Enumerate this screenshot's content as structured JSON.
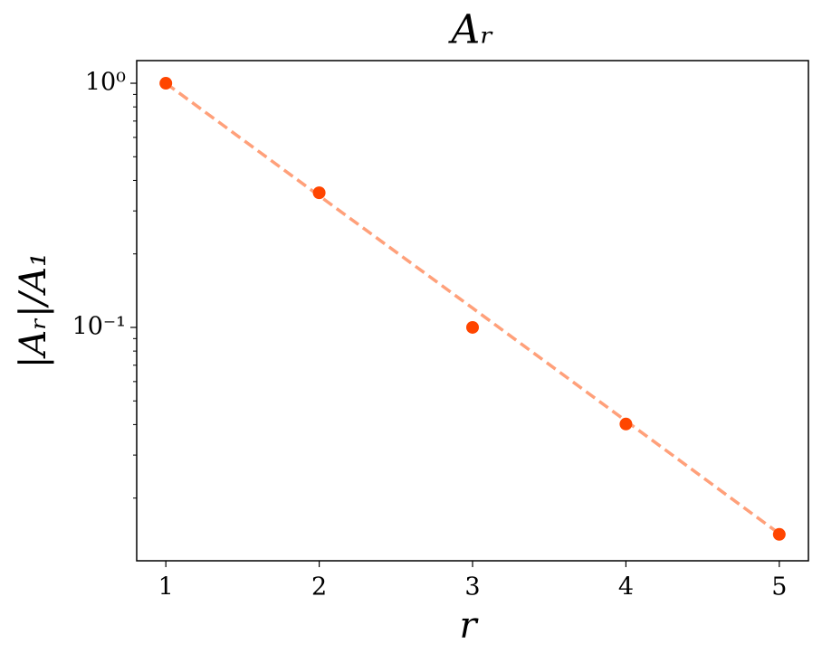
{
  "chart_data": {
    "type": "scatter",
    "title": "Aᵣ",
    "xlabel": "r",
    "ylabel": "|Aᵣ|/A₁",
    "x": [
      1,
      2,
      3,
      4,
      5
    ],
    "series": [
      {
        "color": "#ffa07a",
        "linestyle": "dashed",
        "values": [
          1.0,
          0.346,
          0.12,
          0.0414,
          0.0143
        ]
      },
      {
        "color": "#ff4500",
        "marker": "circle",
        "values": [
          1.0,
          0.356,
          0.1,
          0.0402,
          0.0142
        ]
      }
    ],
    "xlim": [
      0.81,
      5.19
    ],
    "xticks": [
      1,
      2,
      3,
      4,
      5
    ],
    "ylim": [
      0.01107,
      1.238
    ],
    "yscale": "log",
    "yticks": [
      {
        "value": 1,
        "label": "10⁰"
      },
      {
        "value": 0.1,
        "label": "10⁻¹"
      }
    ],
    "yminorticks": [
      0.02,
      0.03,
      0.04,
      0.05,
      0.06,
      0.07,
      0.08,
      0.09,
      0.2,
      0.3,
      0.4,
      0.5,
      0.6,
      0.7,
      0.8,
      0.9
    ]
  }
}
